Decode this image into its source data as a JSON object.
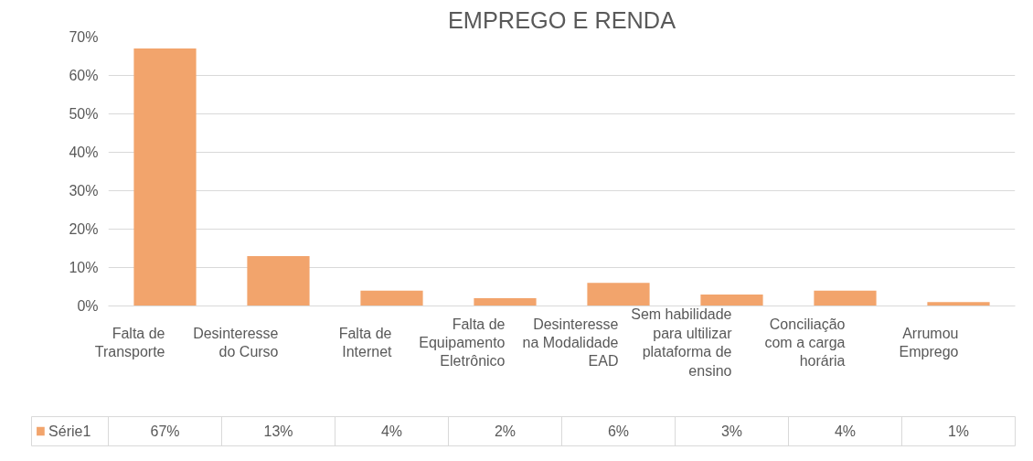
{
  "chart_data": {
    "type": "bar",
    "title": "EMPREGO E RENDA",
    "categories": [
      "Falta de Transporte",
      "Desinteresse do Curso",
      "Falta de Internet",
      "Falta de Equipamento Eletrônico",
      "Desinteresse na Modalidade EAD",
      "Sem habilidade para ultilizar plataforma de ensino",
      "Conciliação com a carga horária",
      "Arrumou Emprego"
    ],
    "series": [
      {
        "name": "Série1",
        "color": "#f2a46c",
        "values": [
          67,
          13,
          4,
          2,
          6,
          3,
          4,
          1
        ],
        "value_labels": [
          "67%",
          "13%",
          "4%",
          "2%",
          "6%",
          "3%",
          "4%",
          "1%"
        ]
      }
    ],
    "ylim": [
      0,
      70
    ],
    "yticks": [
      {
        "value": 0,
        "label": "0%"
      },
      {
        "value": 10,
        "label": "10%"
      },
      {
        "value": 20,
        "label": "20%"
      },
      {
        "value": 30,
        "label": "30%"
      },
      {
        "value": 40,
        "label": "40%"
      },
      {
        "value": 50,
        "label": "50%"
      },
      {
        "value": 60,
        "label": "60%"
      },
      {
        "value": 70,
        "label": "70%"
      }
    ],
    "grid": "y",
    "legend": "bottom"
  }
}
